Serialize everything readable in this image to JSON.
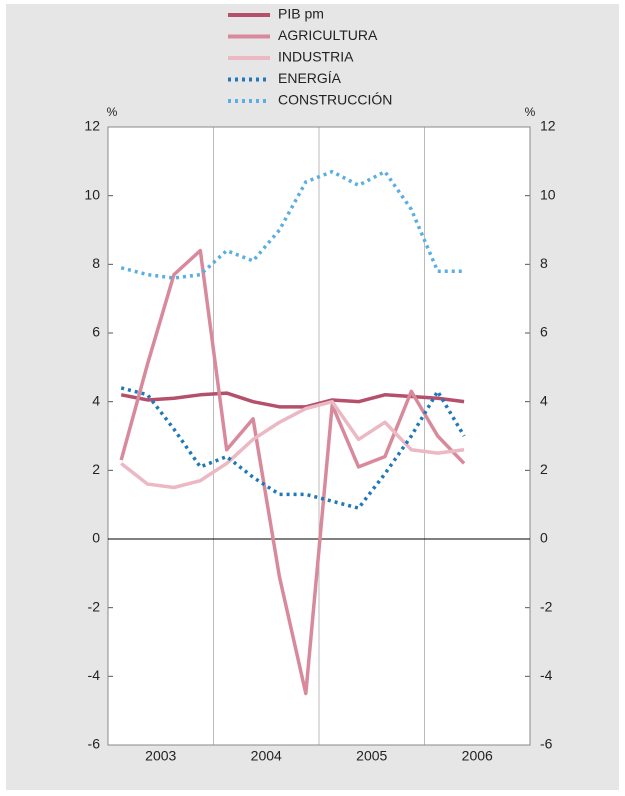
{
  "chart_data": {
    "type": "line",
    "y_unit": "%",
    "categories": [
      null,
      null,
      null,
      null,
      null,
      null,
      null,
      null,
      null,
      null,
      null,
      null,
      null,
      null
    ],
    "years": [
      "2003",
      "2004",
      "2005",
      "2006"
    ],
    "ylim": [
      -6,
      12
    ],
    "yticks": [
      -6,
      -4,
      -2,
      0,
      2,
      4,
      6,
      8,
      10,
      12
    ],
    "series": [
      {
        "name": "PIB pm",
        "color": "#b5506b",
        "style": "solid",
        "values": [
          4.2,
          4.05,
          4.1,
          4.2,
          4.25,
          4.0,
          3.85,
          3.85,
          4.05,
          4.0,
          4.2,
          4.15,
          4.1,
          4.0
        ]
      },
      {
        "name": "AGRICULTURA",
        "color": "#d88a9c",
        "style": "solid",
        "values": [
          2.3,
          5.1,
          7.7,
          8.4,
          2.6,
          3.5,
          -1.1,
          -4.5,
          3.9,
          2.1,
          2.4,
          4.3,
          3.0,
          2.2
        ]
      },
      {
        "name": "INDUSTRIA",
        "color": "#ebb8c4",
        "style": "solid",
        "values": [
          2.2,
          1.6,
          1.5,
          1.7,
          2.2,
          2.9,
          3.4,
          3.8,
          4.0,
          2.9,
          3.4,
          2.6,
          2.5,
          2.6
        ]
      },
      {
        "name": "ENERGÍA",
        "color": "#1f78b8",
        "style": "dotted",
        "values": [
          4.4,
          4.2,
          3.2,
          2.1,
          2.4,
          1.8,
          1.3,
          1.3,
          1.1,
          0.9,
          1.9,
          3.0,
          4.3,
          3.0
        ]
      },
      {
        "name": "CONSTRUCCIÓN",
        "color": "#5aaee0",
        "style": "dotted",
        "values": [
          7.9,
          7.7,
          7.6,
          7.7,
          8.4,
          8.1,
          9.0,
          10.4,
          10.7,
          10.3,
          10.7,
          9.6,
          7.8,
          7.8
        ]
      }
    ]
  }
}
